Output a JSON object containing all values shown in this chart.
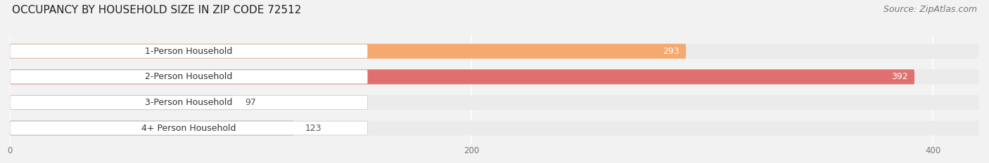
{
  "title": "OCCUPANCY BY HOUSEHOLD SIZE IN ZIP CODE 72512",
  "source": "Source: ZipAtlas.com",
  "categories": [
    "1-Person Household",
    "2-Person Household",
    "3-Person Household",
    "4+ Person Household"
  ],
  "values": [
    293,
    392,
    97,
    123
  ],
  "bar_colors": [
    "#F5A96E",
    "#E07070",
    "#AABFDD",
    "#C4A8C4"
  ],
  "bar_bg_colors": [
    "#EBEBEB",
    "#EBEBEB",
    "#EBEBEB",
    "#EBEBEB"
  ],
  "label_bg_colors": [
    "#FAE0CC",
    "#F5BFBF",
    "#DCE6F2",
    "#E8DDE8"
  ],
  "xlim": [
    0,
    420
  ],
  "xticks": [
    0,
    200,
    400
  ],
  "figsize": [
    14.06,
    2.33
  ],
  "dpi": 100,
  "title_fontsize": 11,
  "bar_height": 0.58,
  "label_fontsize": 9,
  "source_fontsize": 9,
  "bg_color": "#F2F2F2"
}
